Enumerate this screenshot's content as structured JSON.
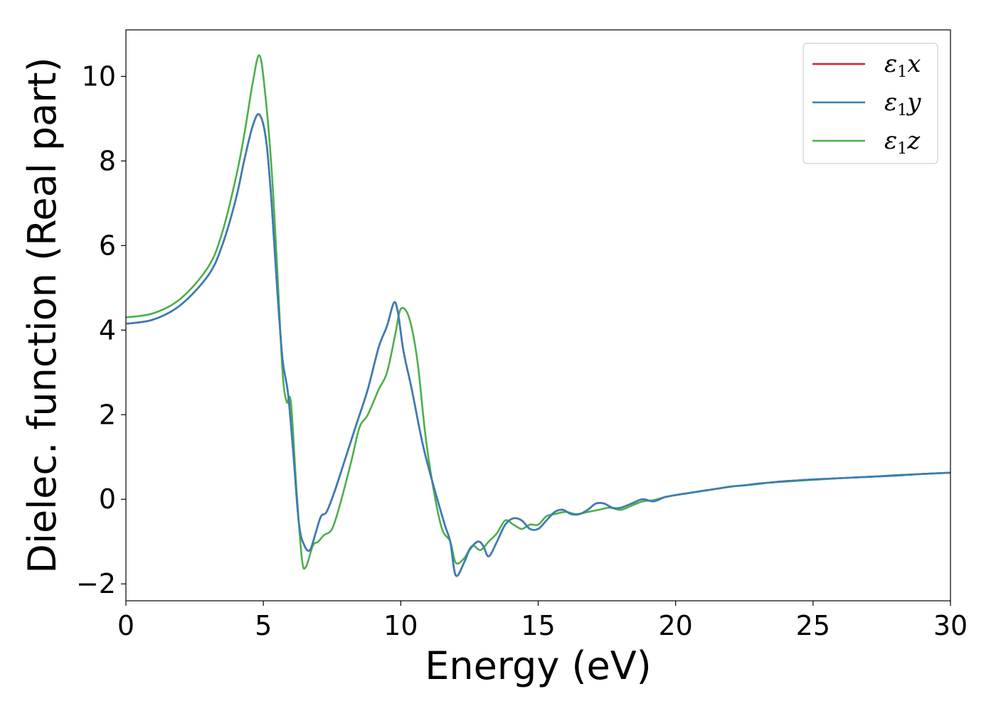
{
  "chart_data": {
    "type": "line",
    "title": "",
    "xlabel": "Energy (eV)",
    "ylabel": "Dielec. function (Real part)",
    "xlim": [
      0,
      30
    ],
    "ylim": [
      -2.4,
      11.1
    ],
    "xticks": [
      0,
      5,
      10,
      15,
      20,
      25,
      30
    ],
    "xtick_labels": [
      "0",
      "5",
      "10",
      "15",
      "20",
      "25",
      "30"
    ],
    "yticks": [
      -2,
      0,
      2,
      4,
      6,
      8,
      10
    ],
    "ytick_labels": [
      "−2",
      "0",
      "2",
      "4",
      "6",
      "8",
      "10"
    ],
    "grid": false,
    "legend_position": "top-right",
    "series": [
      {
        "name": "ε1x",
        "color": "#e41a1c",
        "x": [
          0,
          1,
          2,
          3,
          3.5,
          4,
          4.3,
          4.6,
          4.85,
          5.1,
          5.3,
          5.5,
          5.7,
          5.9,
          6.1,
          6.3,
          6.5,
          6.7,
          6.9,
          7.1,
          7.3,
          7.6,
          8,
          8.4,
          8.8,
          9.2,
          9.5,
          9.75,
          9.9,
          10.1,
          10.4,
          10.8,
          11.2,
          11.6,
          11.8,
          12.0,
          12.3,
          12.5,
          12.8,
          13.0,
          13.2,
          13.5,
          13.8,
          14.1,
          14.4,
          14.7,
          15.0,
          15.3,
          15.6,
          15.9,
          16.2,
          16.5,
          16.8,
          17.1,
          17.4,
          17.7,
          18.0,
          18.4,
          18.8,
          19.2,
          19.6,
          20,
          20.5,
          21,
          21.5,
          22,
          22.5,
          23,
          23.5,
          24,
          24.5,
          25,
          26,
          27,
          28,
          29,
          30
        ],
        "values": [
          4.15,
          4.25,
          4.6,
          5.3,
          6.0,
          7.1,
          8.0,
          8.8,
          9.1,
          8.5,
          7.0,
          5.0,
          3.3,
          2.5,
          1.0,
          -0.6,
          -1.1,
          -1.2,
          -0.8,
          -0.4,
          -0.3,
          0.2,
          1.0,
          1.8,
          2.6,
          3.6,
          4.1,
          4.65,
          4.4,
          3.5,
          2.6,
          1.3,
          0.3,
          -0.6,
          -1.0,
          -1.8,
          -1.5,
          -1.2,
          -1.0,
          -1.1,
          -1.35,
          -1.0,
          -0.6,
          -0.45,
          -0.5,
          -0.7,
          -0.7,
          -0.5,
          -0.3,
          -0.25,
          -0.35,
          -0.35,
          -0.25,
          -0.1,
          -0.1,
          -0.2,
          -0.2,
          -0.1,
          0.0,
          -0.05,
          0.05,
          0.1,
          0.15,
          0.2,
          0.25,
          0.3,
          0.33,
          0.37,
          0.4,
          0.43,
          0.45,
          0.47,
          0.5,
          0.53,
          0.56,
          0.6,
          0.63
        ]
      },
      {
        "name": "ε1y",
        "color": "#377eb8",
        "x": [
          0,
          1,
          2,
          3,
          3.5,
          4,
          4.3,
          4.6,
          4.85,
          5.1,
          5.3,
          5.5,
          5.7,
          5.9,
          6.1,
          6.3,
          6.5,
          6.7,
          6.9,
          7.1,
          7.3,
          7.6,
          8,
          8.4,
          8.8,
          9.2,
          9.5,
          9.75,
          9.9,
          10.1,
          10.4,
          10.8,
          11.2,
          11.6,
          11.8,
          12.0,
          12.3,
          12.5,
          12.8,
          13.0,
          13.2,
          13.5,
          13.8,
          14.1,
          14.4,
          14.7,
          15.0,
          15.3,
          15.6,
          15.9,
          16.2,
          16.5,
          16.8,
          17.1,
          17.4,
          17.7,
          18.0,
          18.4,
          18.8,
          19.2,
          19.6,
          20,
          20.5,
          21,
          21.5,
          22,
          22.5,
          23,
          23.5,
          24,
          24.5,
          25,
          26,
          27,
          28,
          29,
          30
        ],
        "values": [
          4.15,
          4.25,
          4.6,
          5.3,
          6.0,
          7.1,
          8.0,
          8.8,
          9.1,
          8.5,
          7.0,
          5.0,
          3.3,
          2.5,
          1.0,
          -0.6,
          -1.1,
          -1.2,
          -0.8,
          -0.4,
          -0.3,
          0.2,
          1.0,
          1.8,
          2.6,
          3.6,
          4.1,
          4.65,
          4.4,
          3.5,
          2.6,
          1.3,
          0.3,
          -0.6,
          -1.0,
          -1.8,
          -1.5,
          -1.2,
          -1.0,
          -1.1,
          -1.35,
          -1.0,
          -0.6,
          -0.45,
          -0.5,
          -0.7,
          -0.7,
          -0.5,
          -0.3,
          -0.25,
          -0.35,
          -0.35,
          -0.25,
          -0.1,
          -0.1,
          -0.2,
          -0.2,
          -0.1,
          0.0,
          -0.05,
          0.05,
          0.1,
          0.15,
          0.2,
          0.25,
          0.3,
          0.33,
          0.37,
          0.4,
          0.43,
          0.45,
          0.47,
          0.5,
          0.53,
          0.56,
          0.6,
          0.63
        ]
      },
      {
        "name": "ε1z",
        "color": "#4daf4a",
        "x": [
          0,
          1,
          2,
          3,
          3.5,
          4,
          4.3,
          4.6,
          4.85,
          5.05,
          5.3,
          5.5,
          5.7,
          5.85,
          6.0,
          6.2,
          6.4,
          6.55,
          6.8,
          7.0,
          7.2,
          7.5,
          7.8,
          8.2,
          8.5,
          8.8,
          9.2,
          9.5,
          9.8,
          10.0,
          10.3,
          10.6,
          10.9,
          11.2,
          11.5,
          11.8,
          12.0,
          12.3,
          12.6,
          12.9,
          13.2,
          13.5,
          13.8,
          14.1,
          14.4,
          14.7,
          15.0,
          15.3,
          15.6,
          16.0,
          16.4,
          16.8,
          17.2,
          17.6,
          18.0,
          18.4,
          18.8,
          19.2,
          19.6,
          20,
          20.5,
          21,
          21.5,
          22,
          22.5,
          23,
          23.5,
          24,
          24.5,
          25,
          26,
          27,
          28,
          29,
          30
        ],
        "values": [
          4.3,
          4.4,
          4.75,
          5.5,
          6.3,
          7.6,
          8.6,
          9.8,
          10.5,
          9.7,
          7.8,
          5.5,
          3.0,
          2.3,
          2.3,
          0.3,
          -1.4,
          -1.6,
          -1.1,
          -1.0,
          -0.85,
          -0.7,
          -0.1,
          0.9,
          1.7,
          2.0,
          2.6,
          3.0,
          3.9,
          4.5,
          4.3,
          3.3,
          1.5,
          0.2,
          -0.7,
          -1.0,
          -1.5,
          -1.4,
          -1.1,
          -1.2,
          -1.0,
          -0.8,
          -0.5,
          -0.6,
          -0.7,
          -0.6,
          -0.6,
          -0.4,
          -0.35,
          -0.3,
          -0.35,
          -0.3,
          -0.25,
          -0.2,
          -0.25,
          -0.15,
          -0.05,
          -0.02,
          0.05,
          0.1,
          0.15,
          0.2,
          0.25,
          0.3,
          0.33,
          0.36,
          0.4,
          0.42,
          0.44,
          0.46,
          0.5,
          0.53,
          0.57,
          0.6,
          0.63
        ]
      }
    ]
  }
}
